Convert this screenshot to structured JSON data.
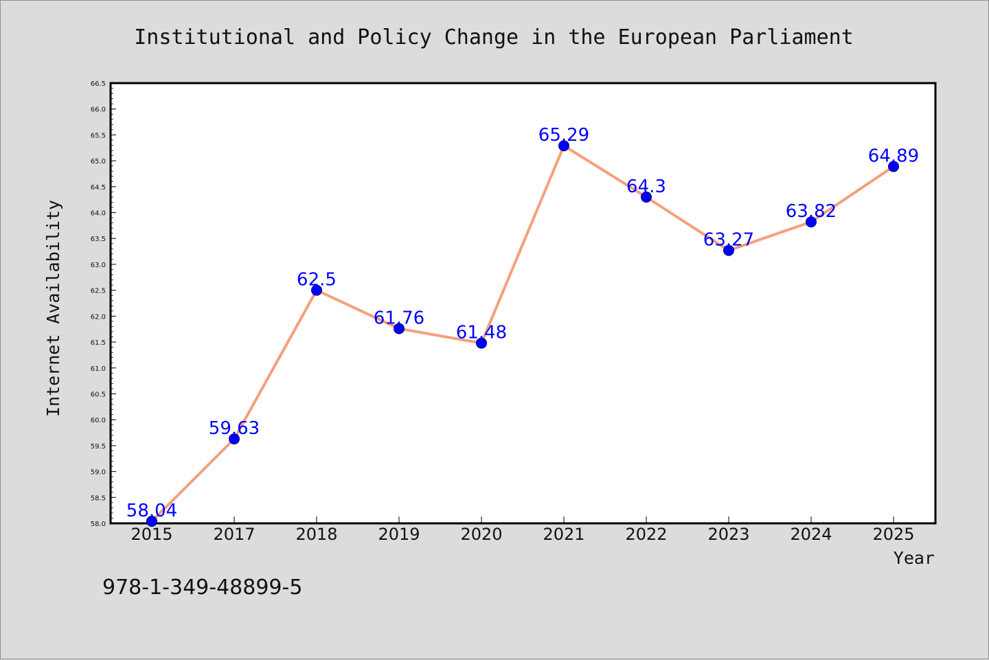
{
  "chart_data": {
    "type": "line",
    "title": "Institutional and Policy Change in the European Parliament",
    "xlabel": "Year",
    "ylabel": "Internet Availability",
    "categories": [
      "2015",
      "2017",
      "2018",
      "2019",
      "2020",
      "2021",
      "2022",
      "2023",
      "2024",
      "2025"
    ],
    "values": [
      58.04,
      59.63,
      62.5,
      61.76,
      61.48,
      65.29,
      64.3,
      63.27,
      63.82,
      64.89
    ],
    "data_labels": [
      "58.04",
      "59.63",
      "62.5",
      "61.76",
      "61.48",
      "65.29",
      "64.3",
      "63.27",
      "63.82",
      "64.89"
    ],
    "ylim": [
      58.0,
      66.5
    ],
    "yticks": [
      "58.0",
      "58.5",
      "59.0",
      "59.5",
      "60.0",
      "60.5",
      "61.0",
      "61.5",
      "62.0",
      "62.5",
      "63.0",
      "63.5",
      "64.0",
      "64.5",
      "65.0",
      "65.5",
      "66.0",
      "66.5"
    ],
    "grid": false,
    "line_color": "#f4a07c",
    "marker_color": "#0000ff",
    "label_color": "#0000ff"
  },
  "footer_text": "978-1-349-48899-5"
}
